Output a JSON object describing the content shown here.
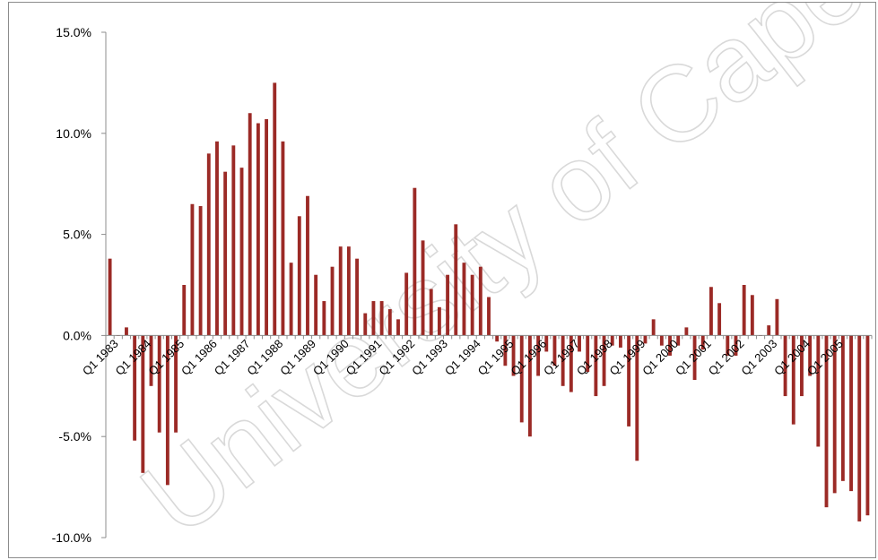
{
  "chart_data": {
    "type": "bar",
    "title": "",
    "xlabel": "",
    "ylabel": "",
    "ylim": [
      -0.1,
      0.15
    ],
    "y_ticks": [
      0.15,
      0.1,
      0.05,
      0.0,
      -0.05,
      -0.1
    ],
    "y_tick_labels": [
      "15.0%",
      "10.0%",
      "5.0%",
      "0.0%",
      "-5.0%",
      "-10.0%"
    ],
    "grid": false,
    "bar_color": "#9b2a26",
    "watermark": "University of Cape Town",
    "x_tick_labels": [
      "Q1 1983",
      "Q1 1984",
      "Q1 1985",
      "Q1 1986",
      "Q1 1987",
      "Q1 1988",
      "Q1 1989",
      "Q1 1990",
      "Q1 1991",
      "Q1 1992",
      "Q1 1993",
      "Q1 1994",
      "Q1 1995",
      "Q1 1996",
      "Q1 1997",
      "Q1 1998",
      "Q1 1999",
      "Q1 2000",
      "Q1 2001",
      "Q1 2002",
      "Q1 2003",
      "Q1 2004",
      "Q1 2005"
    ],
    "series": [
      {
        "values": [
          0.038,
          0.0,
          0.004,
          -0.052,
          -0.068,
          -0.025,
          -0.048,
          -0.074,
          -0.048,
          0.025,
          0.065,
          0.064,
          0.09,
          0.096,
          0.081,
          0.094,
          0.083,
          0.11,
          0.105,
          0.107,
          0.125,
          0.096,
          0.036,
          0.059,
          0.069,
          0.03,
          0.017,
          0.034,
          0.044,
          0.044,
          0.038,
          0.011,
          0.017,
          0.017,
          0.013,
          0.008,
          0.031,
          0.073,
          0.047,
          0.023,
          0.014,
          0.03,
          0.055,
          0.036,
          0.03,
          0.034,
          0.019,
          -0.003,
          -0.015,
          -0.02,
          -0.043,
          -0.05,
          -0.02,
          -0.008,
          -0.015,
          -0.025,
          -0.028,
          -0.008,
          -0.018,
          -0.03,
          -0.025,
          -0.005,
          -0.006,
          -0.045,
          -0.062,
          -0.004,
          0.008,
          -0.005,
          -0.01,
          -0.005,
          0.004,
          -0.022,
          -0.007,
          0.024,
          0.016,
          -0.01,
          -0.01,
          0.025,
          0.02,
          0.0,
          0.005,
          0.018,
          -0.03,
          -0.044,
          -0.03,
          -0.02,
          -0.055,
          -0.085,
          -0.078,
          -0.072,
          -0.077,
          -0.092,
          -0.089
        ]
      }
    ]
  }
}
